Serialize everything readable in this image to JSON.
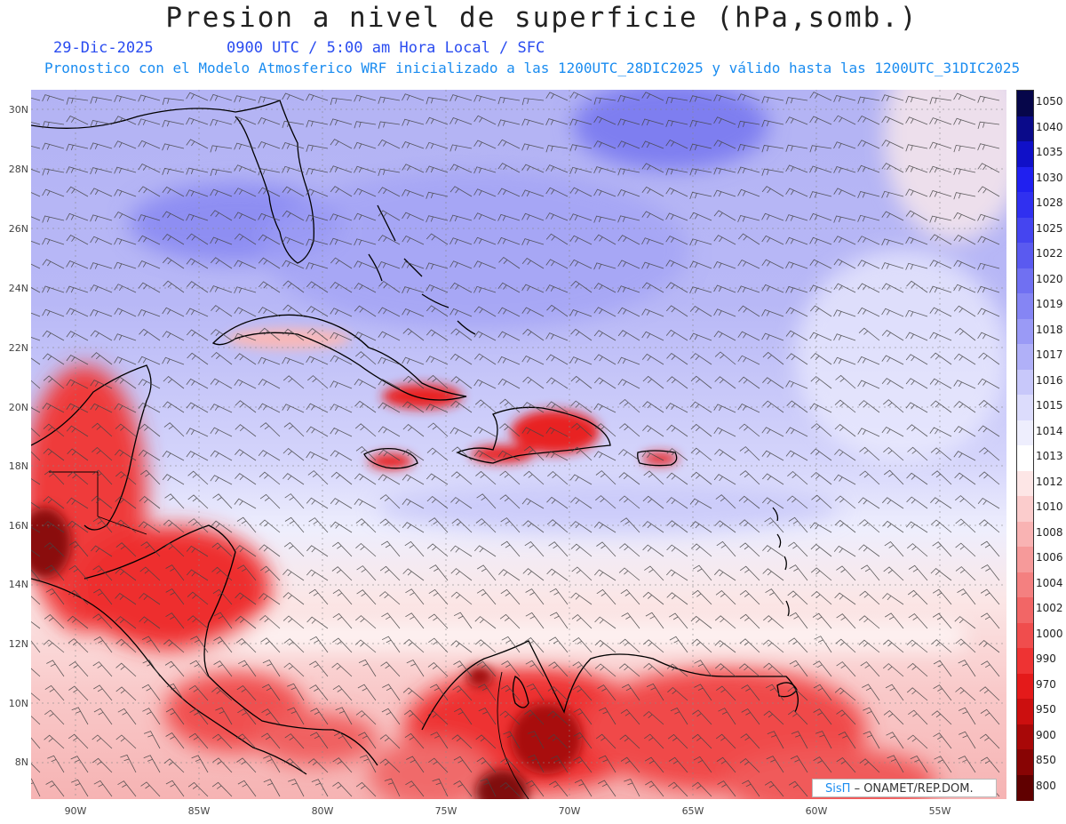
{
  "header": {
    "title": "Presion a nivel de superficie (hPa,somb.)",
    "date": "29-Dic-2025",
    "valid_time": "0900 UTC / 5:00 am Hora Local / SFC",
    "model_info": "Pronostico con el Modelo Atmosferico WRF inicializado a las 1200UTC_28DIC2025 y válido hasta las  1200UTC_31DIC2025"
  },
  "axes": {
    "lat_labels": [
      "30N",
      "28N",
      "26N",
      "24N",
      "22N",
      "20N",
      "18N",
      "16N",
      "14N",
      "12N",
      "10N",
      "8N"
    ],
    "lon_labels": [
      "90W",
      "85W",
      "80W",
      "75W",
      "70W",
      "65W",
      "60W",
      "55W"
    ]
  },
  "colorbar": {
    "levels": [
      "1050",
      "1040",
      "1035",
      "1030",
      "1028",
      "1025",
      "1022",
      "1020",
      "1019",
      "1018",
      "1017",
      "1016",
      "1015",
      "1014",
      "1013",
      "1012",
      "1010",
      "1008",
      "1006",
      "1004",
      "1002",
      "1000",
      "990",
      "970",
      "950",
      "900",
      "850",
      "800"
    ],
    "colors": [
      "#06064a",
      "#0a0a8a",
      "#1010c8",
      "#2020f0",
      "#3030f0",
      "#4545f0",
      "#5a5af0",
      "#7070f2",
      "#8585f4",
      "#9a9af6",
      "#b0b0f8",
      "#c8c8fa",
      "#dcdcfc",
      "#eeeefd",
      "#ffffff",
      "#fde6e6",
      "#fbcccc",
      "#f9b3b3",
      "#f69a9a",
      "#f48080",
      "#f26666",
      "#f04d4d",
      "#ee3333",
      "#e41a1a",
      "#cc0f0f",
      "#a80808",
      "#880404",
      "#600000"
    ]
  },
  "credit": {
    "brand": "SisΠ",
    "text": "– ONAMET/REP.DOM."
  },
  "colors": {
    "title": "#222222",
    "date": "#2a4cf0",
    "model_info": "#1a8cf0"
  }
}
